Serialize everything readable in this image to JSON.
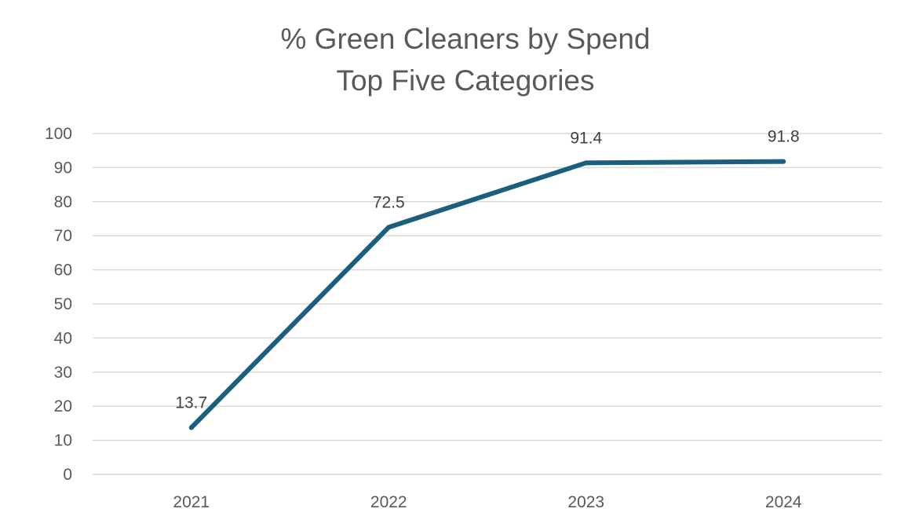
{
  "chart_data": {
    "type": "line",
    "title": "% Green Cleaners by Spend",
    "subtitle": "Top Five Categories",
    "xlabel": "",
    "ylabel": "",
    "categories": [
      "2021",
      "2022",
      "2023",
      "2024"
    ],
    "series": [
      {
        "name": "% Green Cleaners by Spend",
        "values": [
          13.7,
          72.5,
          91.4,
          91.8
        ],
        "labels": [
          "13.7",
          "72.5",
          "91.4",
          "91.8"
        ],
        "color": "#1b5e7e"
      }
    ],
    "ylim": [
      0,
      100
    ],
    "yticks": [
      "0",
      "10",
      "20",
      "30",
      "40",
      "50",
      "60",
      "70",
      "80",
      "90",
      "100"
    ],
    "grid": true,
    "legend": "none"
  }
}
